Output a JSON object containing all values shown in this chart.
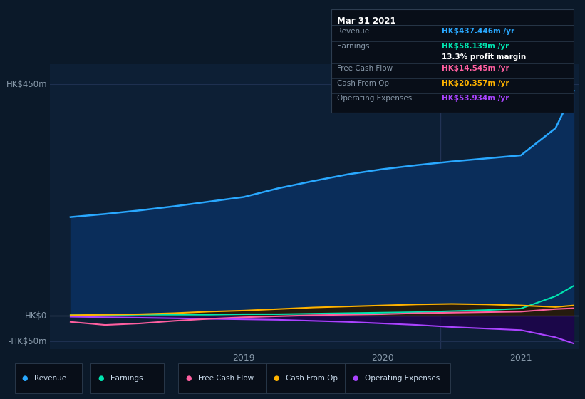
{
  "bg_color": "#0b1929",
  "plot_bg_color": "#0d1f35",
  "grid_color": "#1e3050",
  "title_box": {
    "date": "Mar 31 2021",
    "rows": [
      {
        "label": "Revenue",
        "value": "HK$437.446m",
        "value_color": "#29a8ff"
      },
      {
        "label": "Earnings",
        "value": "HK$58.139m",
        "value_color": "#00e5b0",
        "sub": "13.3% profit margin"
      },
      {
        "label": "Free Cash Flow",
        "value": "HK$14.545m",
        "value_color": "#ff5fa0"
      },
      {
        "label": "Cash From Op",
        "value": "HK$20.357m",
        "value_color": "#ffb300"
      },
      {
        "label": "Operating Expenses",
        "value": "HK$53.934m",
        "value_color": "#aa44ff"
      }
    ]
  },
  "ylim": [
    -65,
    490
  ],
  "ytick_vals": [
    450,
    0,
    -50
  ],
  "ytick_labels": [
    "HK$450m",
    "HK$0",
    "-HK$50m"
  ],
  "xlim_start": 2017.6,
  "xlim_end": 2021.42,
  "xticks": [
    2019,
    2020,
    2021
  ],
  "series": {
    "revenue": {
      "color": "#29a8ff",
      "fill_color": "#0a2d5a",
      "x": [
        2017.75,
        2018.0,
        2018.25,
        2018.5,
        2018.75,
        2019.0,
        2019.25,
        2019.5,
        2019.75,
        2020.0,
        2020.25,
        2020.5,
        2020.75,
        2021.0,
        2021.25,
        2021.38
      ],
      "y": [
        192,
        198,
        205,
        213,
        222,
        231,
        248,
        262,
        275,
        285,
        293,
        300,
        306,
        312,
        365,
        437
      ]
    },
    "earnings": {
      "color": "#00e5b0",
      "x": [
        2017.75,
        2018.0,
        2018.25,
        2018.5,
        2018.75,
        2019.0,
        2019.25,
        2019.5,
        2019.75,
        2020.0,
        2020.25,
        2020.5,
        2020.75,
        2021.0,
        2021.25,
        2021.38
      ],
      "y": [
        1,
        1,
        2,
        2,
        2,
        3,
        3,
        4,
        5,
        6,
        7,
        9,
        11,
        14,
        38,
        58
      ]
    },
    "free_cash_flow": {
      "color": "#ff5fa0",
      "x": [
        2017.75,
        2018.0,
        2018.25,
        2018.5,
        2018.75,
        2019.0,
        2019.25,
        2019.5,
        2019.75,
        2020.0,
        2020.25,
        2020.5,
        2020.75,
        2021.0,
        2021.25,
        2021.38
      ],
      "y": [
        -12,
        -18,
        -15,
        -10,
        -6,
        -3,
        -1,
        1,
        2,
        3,
        5,
        6,
        7,
        8,
        13,
        14.5
      ]
    },
    "cash_from_op": {
      "color": "#ffb300",
      "fill_color": "#2a1800",
      "x": [
        2017.75,
        2018.0,
        2018.25,
        2018.5,
        2018.75,
        2019.0,
        2019.25,
        2019.5,
        2019.75,
        2020.0,
        2020.25,
        2020.5,
        2020.75,
        2021.0,
        2021.25,
        2021.38
      ],
      "y": [
        1,
        2,
        3,
        5,
        8,
        10,
        13,
        16,
        18,
        20,
        22,
        23,
        22,
        20,
        17,
        20
      ]
    },
    "operating_expenses": {
      "color": "#aa44ff",
      "fill_color": "#1a0040",
      "x": [
        2017.75,
        2018.0,
        2018.25,
        2018.5,
        2018.75,
        2019.0,
        2019.25,
        2019.5,
        2019.75,
        2020.0,
        2020.25,
        2020.5,
        2020.75,
        2021.0,
        2021.25,
        2021.38
      ],
      "y": [
        -2,
        -3,
        -4,
        -5,
        -6,
        -7,
        -8,
        -10,
        -12,
        -15,
        -18,
        -22,
        -25,
        -28,
        -42,
        -54
      ]
    }
  },
  "legend": [
    {
      "label": "Revenue",
      "color": "#29a8ff"
    },
    {
      "label": "Earnings",
      "color": "#00e5b0"
    },
    {
      "label": "Free Cash Flow",
      "color": "#ff5fa0"
    },
    {
      "label": "Cash From Op",
      "color": "#ffb300"
    },
    {
      "label": "Operating Expenses",
      "color": "#aa44ff"
    }
  ],
  "vline_x": 2020.42,
  "vline_color": "#223355"
}
